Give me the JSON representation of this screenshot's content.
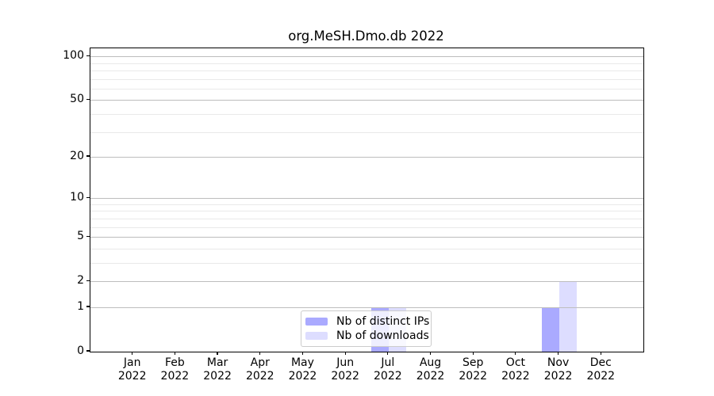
{
  "figure": {
    "title": "org.MeSH.Dmo.db 2022"
  },
  "chart_data": {
    "type": "bar",
    "title": "org.MeSH.Dmo.db 2022",
    "categories": [
      "Jan",
      "Feb",
      "Mar",
      "Apr",
      "May",
      "Jun",
      "Jul",
      "Aug",
      "Sep",
      "Oct",
      "Nov",
      "Dec"
    ],
    "year_label": "2022",
    "series": [
      {
        "name": "Nb of distinct IPs",
        "color": "#aaaaff",
        "values": [
          0,
          0,
          0,
          0,
          0,
          0,
          1,
          0,
          0,
          0,
          1,
          0
        ]
      },
      {
        "name": "Nb of downloads",
        "color": "#ddddff",
        "values": [
          0,
          0,
          0,
          0,
          0,
          0,
          1,
          0,
          0,
          0,
          2,
          0
        ]
      }
    ],
    "yscale": "log1p",
    "ylim": [
      0,
      113.5
    ],
    "yticks_major": [
      0,
      1,
      2,
      5,
      10,
      20,
      50,
      100
    ],
    "yticks_minor": [
      3,
      4,
      6,
      7,
      8,
      9,
      30,
      40,
      60,
      70,
      80,
      90
    ],
    "grid": "horizontal-y",
    "legend_position": "lower-center",
    "colors": {
      "distinct_ips_bar": "#aaaaff",
      "downloads_bar": "#ddddff",
      "major_grid": "#bdbdbd",
      "minor_grid": "#e9e9e9",
      "axis": "#000000"
    }
  }
}
